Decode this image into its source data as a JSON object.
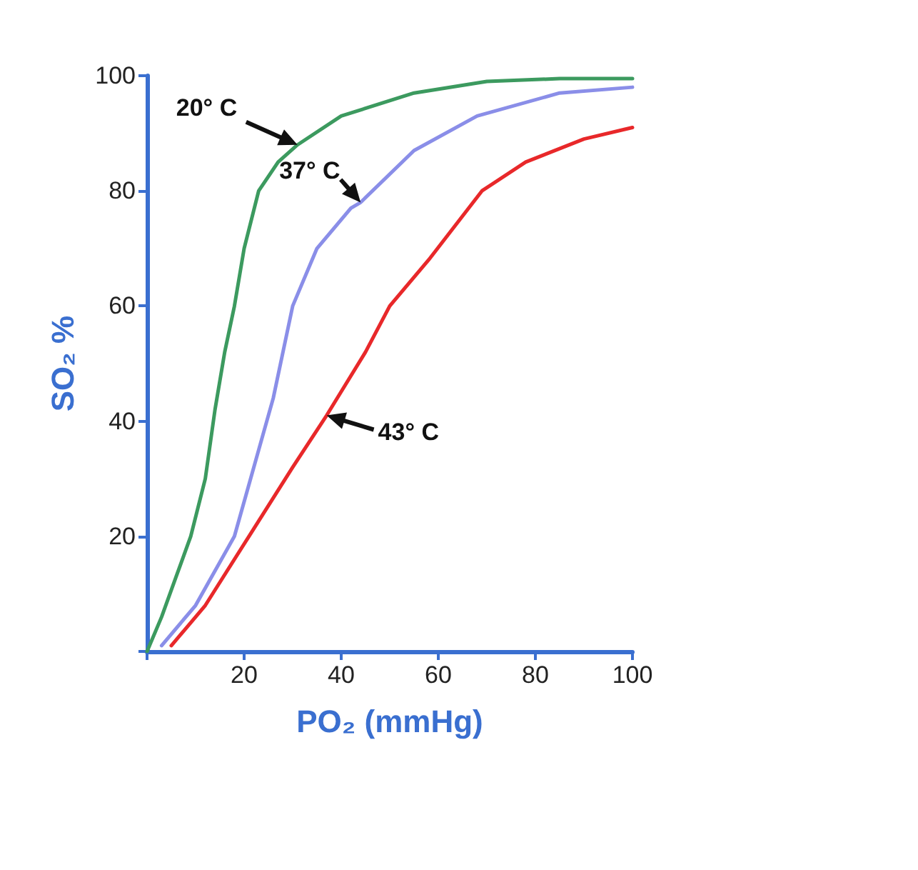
{
  "chart_data": {
    "type": "line",
    "xlabel": "PO₂ (mmHg)",
    "ylabel": "SO₂ %",
    "xlim": [
      0,
      100
    ],
    "ylim": [
      0,
      100
    ],
    "xticks": [
      {
        "value": 0,
        "label": null
      },
      20,
      40,
      60,
      80,
      100
    ],
    "yticks": [
      {
        "value": 0,
        "label": null
      },
      20,
      40,
      60,
      80,
      100
    ],
    "grid": false,
    "marker": "none",
    "line_style": "solid",
    "series": [
      {
        "color": "#3c9a5f",
        "x": [
          0,
          3,
          6,
          9,
          12,
          14,
          16,
          18,
          20,
          23,
          27,
          31,
          40,
          55,
          70,
          85,
          100
        ],
        "values": [
          0,
          6,
          13,
          20,
          30,
          42,
          52,
          60,
          70,
          80,
          85,
          88,
          93,
          97,
          99,
          99.5,
          99.5
        ]
      },
      {
        "color": "#8a8ee8",
        "x": [
          3,
          10,
          18,
          26,
          30,
          35,
          42,
          44,
          55,
          68,
          85,
          100
        ],
        "values": [
          1,
          8,
          20,
          44,
          60,
          70,
          77,
          78,
          87,
          93,
          97,
          98
        ]
      },
      {
        "color": "#e8282a",
        "x": [
          5,
          12,
          21,
          30,
          37,
          45,
          50,
          58,
          69,
          78,
          90,
          100
        ],
        "values": [
          1,
          8,
          20,
          32,
          41,
          52,
          60,
          68,
          80,
          85,
          89,
          91
        ]
      }
    ],
    "annotations": [
      {
        "text": "20° C",
        "x": 31,
        "y": 88
      },
      {
        "text": "37° C",
        "x": 44,
        "y": 78
      },
      {
        "text": "43° C",
        "x": 37,
        "y": 41
      }
    ]
  }
}
